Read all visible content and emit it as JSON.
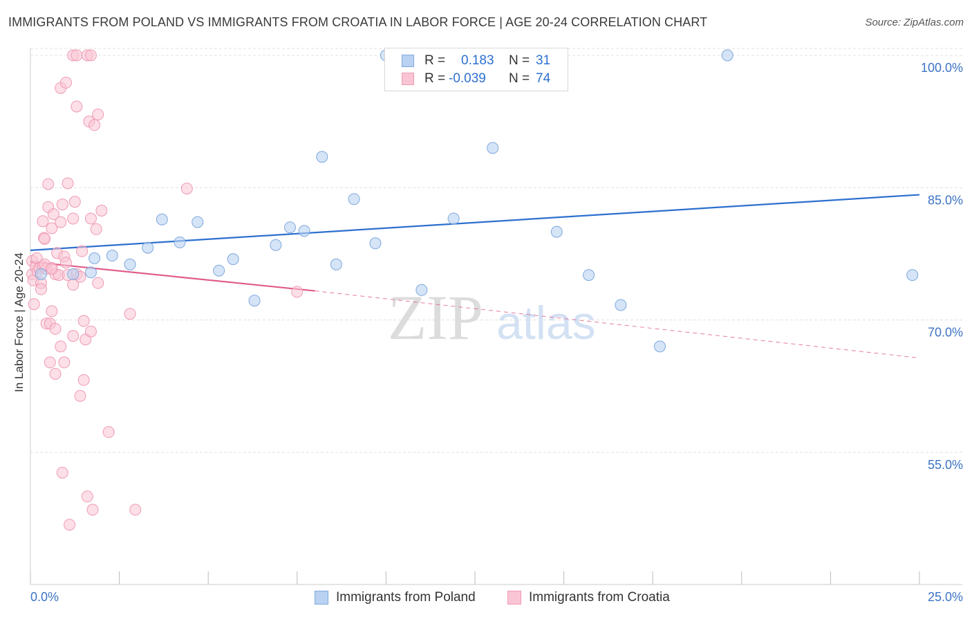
{
  "title": "IMMIGRANTS FROM POLAND VS IMMIGRANTS FROM CROATIA IN LABOR FORCE | AGE 20-24 CORRELATION CHART",
  "source": "Source: ZipAtlas.com",
  "watermark": {
    "zip": "ZIP",
    "atlas": "atlas"
  },
  "stats": {
    "poland": {
      "r_label": "R =",
      "r_value": "0.183",
      "n_label": "N =",
      "n_value": "31"
    },
    "croatia": {
      "r_label": "R =",
      "r_value": "-0.039",
      "n_label": "N =",
      "n_value": "74"
    }
  },
  "colors": {
    "poland_fill": "#b9d2f2",
    "poland_stroke": "#7ea8dd",
    "poland_line": "#2d6fcf",
    "croatia_fill": "#f9c5d4",
    "croatia_stroke": "#ee9ab4",
    "croatia_line": "#e05b8a",
    "grid": "#e0e0e0",
    "tick_label": "#3b73c5"
  },
  "chart_data": {
    "type": "scatter",
    "title": "IMMIGRANTS FROM POLAND VS IMMIGRANTS FROM CROATIA IN LABOR FORCE | AGE 20-24 CORRELATION CHART",
    "xlabel": "",
    "ylabel": "In Labor Force | Age 20-24",
    "xlim": [
      0,
      25
    ],
    "ylim": [
      40,
      102
    ],
    "x_tick_labels": [
      "0.0%",
      "25.0%"
    ],
    "y_ticks": [
      55,
      70,
      85,
      100
    ],
    "y_tick_labels": [
      "55.0%",
      "70.0%",
      "85.0%",
      "100.0%"
    ],
    "grid": true,
    "legend_position": "bottom",
    "series": [
      {
        "name": "Immigrants from Poland",
        "points": [
          [
            0.3,
            75.2
          ],
          [
            1.2,
            75.2
          ],
          [
            1.7,
            75.4
          ],
          [
            1.8,
            77.0
          ],
          [
            2.3,
            77.3
          ],
          [
            2.8,
            76.3
          ],
          [
            3.3,
            78.2
          ],
          [
            3.7,
            81.4
          ],
          [
            4.2,
            78.8
          ],
          [
            4.7,
            81.1
          ],
          [
            5.3,
            75.6
          ],
          [
            5.7,
            76.9
          ],
          [
            6.3,
            72.2
          ],
          [
            6.9,
            78.5
          ],
          [
            7.3,
            80.5
          ],
          [
            7.7,
            80.1
          ],
          [
            8.2,
            88.5
          ],
          [
            8.6,
            76.3
          ],
          [
            9.1,
            83.7
          ],
          [
            9.7,
            78.7
          ],
          [
            10.0,
            100.0
          ],
          [
            11.0,
            73.4
          ],
          [
            11.9,
            81.5
          ],
          [
            12.1,
            100.0
          ],
          [
            13.0,
            89.5
          ],
          [
            14.8,
            80.0
          ],
          [
            15.7,
            75.1
          ],
          [
            16.6,
            71.7
          ],
          [
            17.7,
            67.0
          ],
          [
            19.6,
            100.0
          ],
          [
            24.8,
            75.1
          ]
        ],
        "trend": {
          "x": [
            0,
            25
          ],
          "y": [
            77.9,
            84.2
          ]
        }
      },
      {
        "name": "Immigrants from Croatia",
        "points": [
          [
            0.05,
            76.7
          ],
          [
            0.05,
            75.2
          ],
          [
            0.08,
            74.5
          ],
          [
            0.1,
            71.8
          ],
          [
            0.15,
            76.0
          ],
          [
            0.18,
            77.0
          ],
          [
            0.2,
            75.5
          ],
          [
            0.25,
            75.9
          ],
          [
            0.3,
            74.2
          ],
          [
            0.3,
            73.5
          ],
          [
            0.35,
            81.2
          ],
          [
            0.35,
            76.1
          ],
          [
            0.38,
            79.3
          ],
          [
            0.4,
            79.2
          ],
          [
            0.45,
            69.6
          ],
          [
            0.45,
            75.8
          ],
          [
            0.5,
            85.4
          ],
          [
            0.5,
            82.8
          ],
          [
            0.55,
            69.6
          ],
          [
            0.55,
            65.2
          ],
          [
            0.6,
            80.4
          ],
          [
            0.6,
            75.9
          ],
          [
            0.6,
            71.0
          ],
          [
            0.65,
            82.0
          ],
          [
            0.7,
            75.2
          ],
          [
            0.7,
            69.0
          ],
          [
            0.7,
            63.9
          ],
          [
            0.75,
            77.6
          ],
          [
            0.8,
            75.1
          ],
          [
            0.85,
            96.3
          ],
          [
            0.85,
            81.1
          ],
          [
            0.85,
            67.0
          ],
          [
            0.9,
            83.1
          ],
          [
            0.9,
            52.7
          ],
          [
            0.95,
            77.2
          ],
          [
            0.95,
            65.2
          ],
          [
            1.0,
            76.5
          ],
          [
            1.05,
            85.5
          ],
          [
            1.05,
            75.1
          ],
          [
            1.0,
            96.9
          ],
          [
            1.1,
            46.8
          ],
          [
            1.2,
            100.0
          ],
          [
            1.2,
            81.5
          ],
          [
            1.2,
            68.2
          ],
          [
            1.2,
            74.0
          ],
          [
            1.25,
            83.4
          ],
          [
            1.3,
            100.0
          ],
          [
            1.3,
            94.2
          ],
          [
            1.3,
            75.2
          ],
          [
            1.4,
            61.4
          ],
          [
            1.4,
            74.9
          ],
          [
            1.45,
            77.8
          ],
          [
            1.5,
            69.9
          ],
          [
            1.5,
            63.2
          ],
          [
            1.55,
            67.8
          ],
          [
            1.6,
            50.0
          ],
          [
            1.6,
            100.0
          ],
          [
            1.65,
            92.5
          ],
          [
            1.7,
            100.0
          ],
          [
            1.7,
            68.7
          ],
          [
            1.7,
            81.5
          ],
          [
            1.75,
            48.5
          ],
          [
            1.8,
            92.1
          ],
          [
            1.85,
            80.3
          ],
          [
            1.9,
            74.2
          ],
          [
            1.9,
            93.3
          ],
          [
            2.0,
            82.4
          ],
          [
            2.2,
            57.3
          ],
          [
            2.8,
            70.7
          ],
          [
            2.95,
            48.5
          ],
          [
            4.4,
            84.9
          ],
          [
            7.5,
            73.2
          ],
          [
            0.4,
            76.3
          ],
          [
            0.6,
            75.8
          ]
        ],
        "trend": {
          "x": [
            0,
            8.0,
            25
          ],
          "y": [
            76.6,
            73.3,
            65.7
          ]
        }
      }
    ]
  },
  "legend": {
    "poland_label": "Immigrants from Poland",
    "croatia_label": "Immigrants from Croatia"
  }
}
